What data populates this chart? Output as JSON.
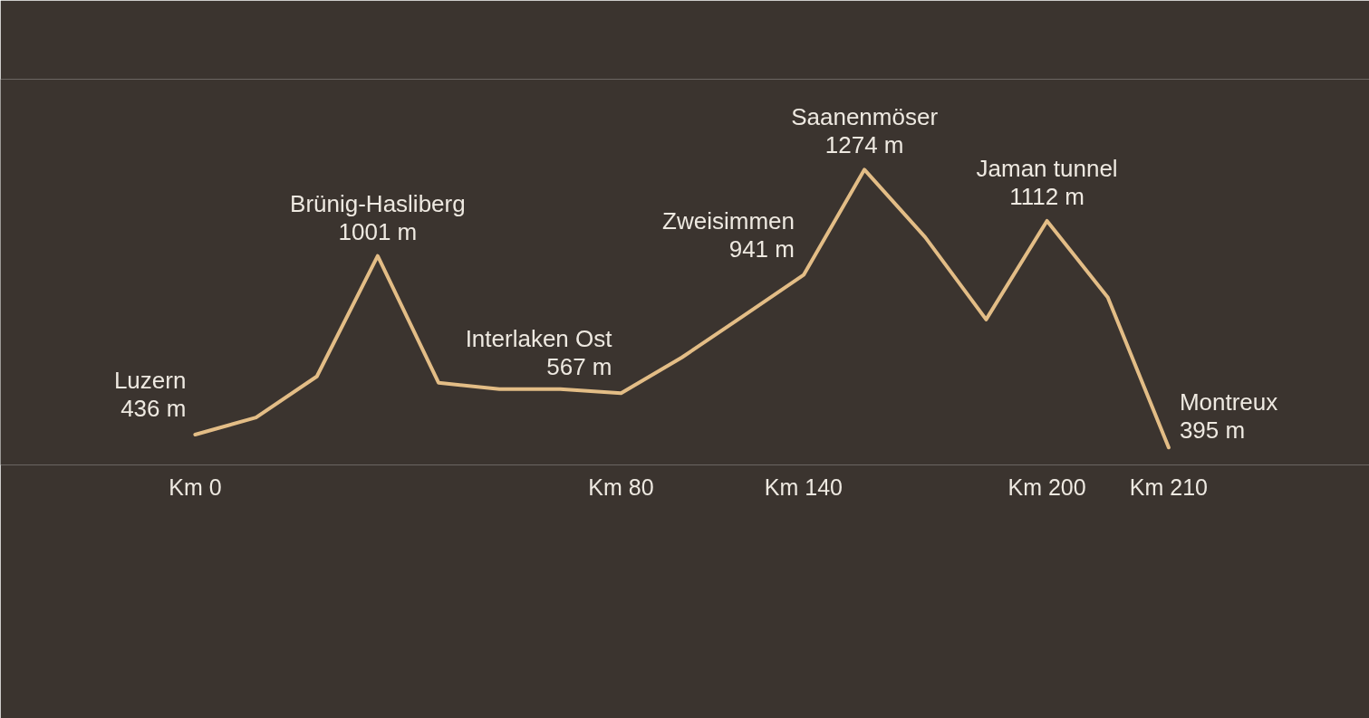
{
  "chart_data": {
    "type": "line",
    "categories": [
      "Km 0",
      null,
      null,
      null,
      null,
      null,
      null,
      "Km 80",
      null,
      null,
      "Km 140",
      null,
      null,
      null,
      "Km 200",
      null,
      "Km 210"
    ],
    "series": [
      {
        "color": "#e3bd86",
        "values": [
          436,
          490,
          620,
          1001,
          600,
          580,
          580,
          567,
          680,
          810,
          941,
          1274,
          1060,
          800,
          1112,
          870,
          395
        ],
        "value_labels": [
          "436 m",
          null,
          null,
          "1001 m",
          null,
          null,
          null,
          "567 m",
          null,
          null,
          "941 m",
          "1274 m",
          null,
          null,
          "1112 m",
          null,
          "395 m"
        ]
      }
    ],
    "ylim": [
      340,
      1560
    ],
    "tick_labels": "x",
    "annotations": [
      {
        "text": "Luzern",
        "x": "Km 0",
        "y": 436
      },
      {
        "text": "Brünig-Hasliberg",
        "y": 1001
      },
      {
        "text": "Interlaken Ost",
        "x": "Km 80",
        "y": 567
      },
      {
        "text": "Zweisimmen",
        "x": "Km 140",
        "y": 941
      },
      {
        "text": "Saanenmöser",
        "y": 1274
      },
      {
        "text": "Jaman tunnel",
        "x": "Km 200",
        "y": 1112
      },
      {
        "text": "Montreux",
        "x": "Km 210",
        "y": 395
      }
    ]
  }
}
